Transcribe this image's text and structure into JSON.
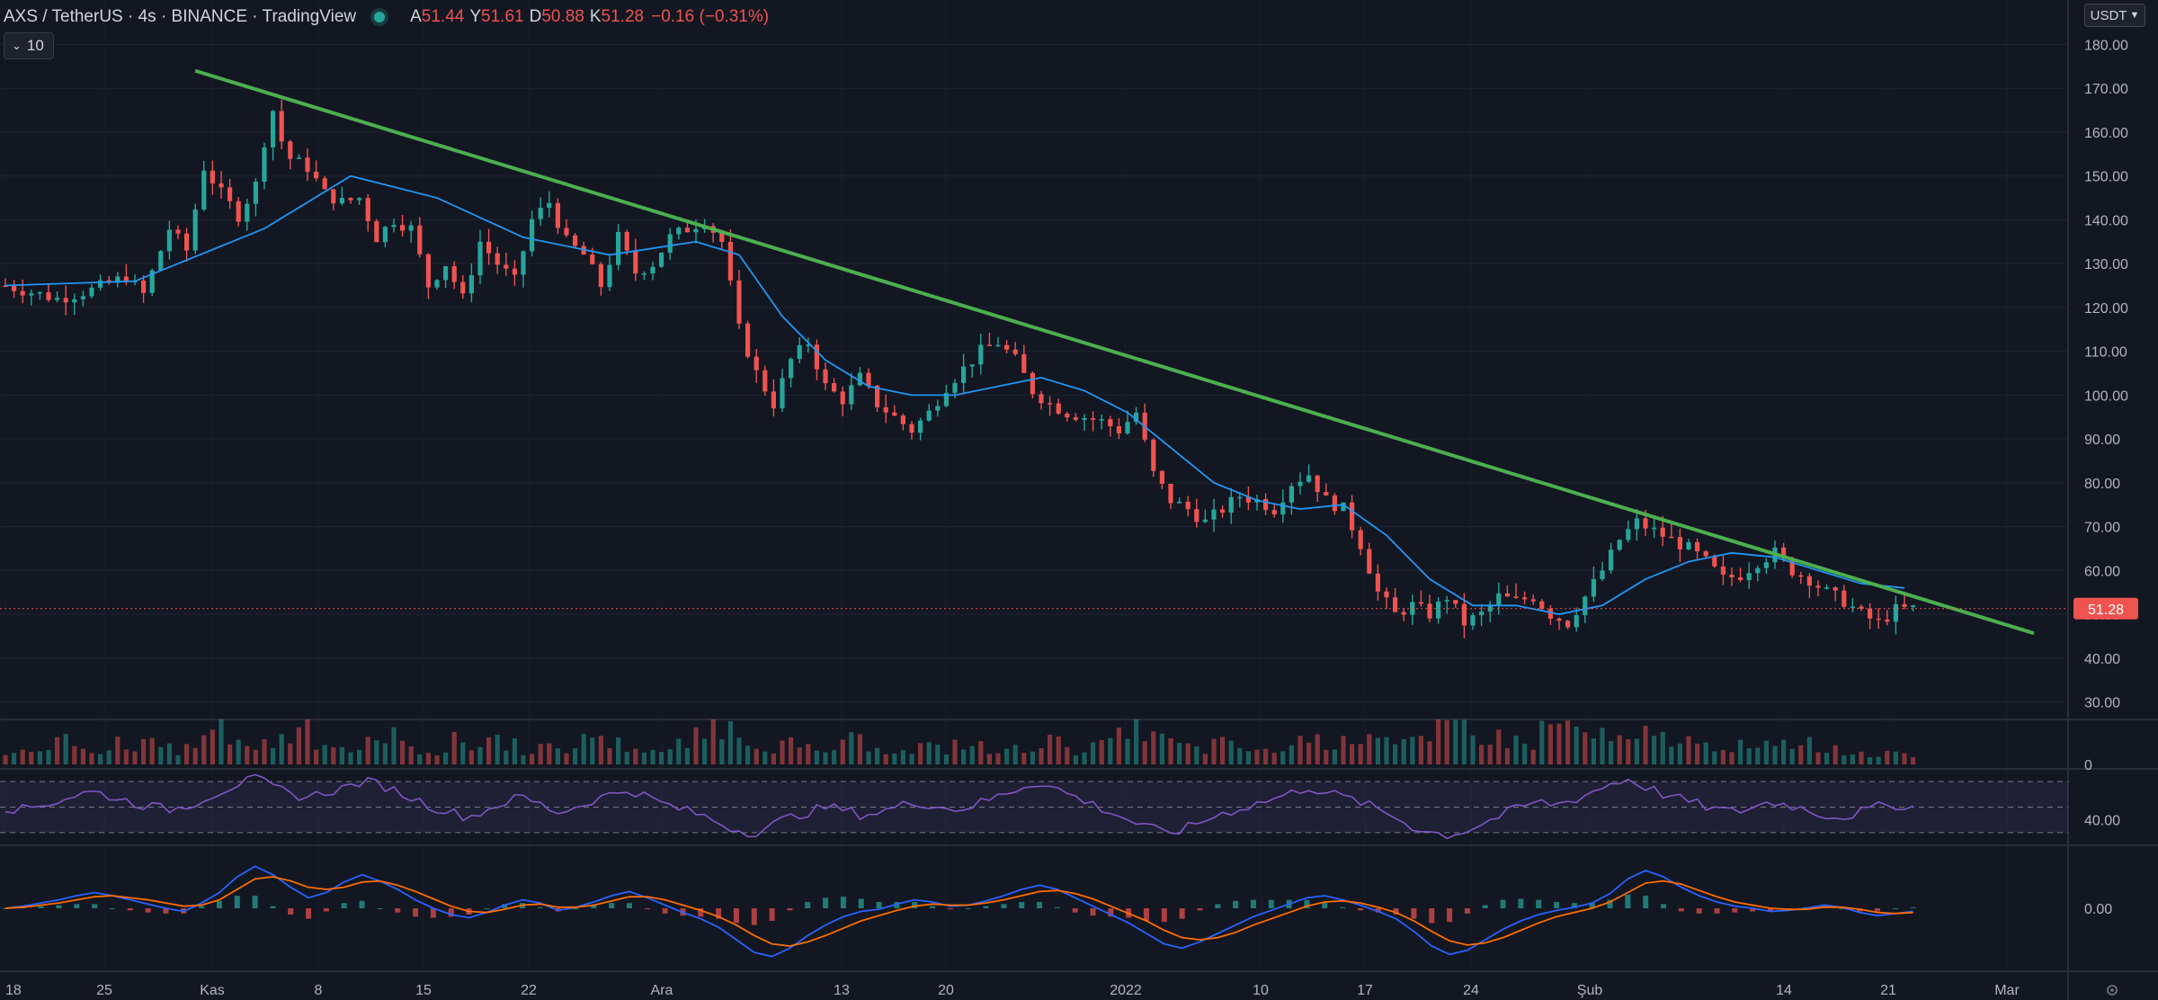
{
  "legend": {
    "symbol": "AXS / TetherUS · 4s · BINANCE · TradingView",
    "open_label": "A",
    "open": "51.44",
    "high_label": "Y",
    "high": "51.61",
    "low_label": "D",
    "low": "50.88",
    "close_label": "K",
    "close": "51.28",
    "change": "−0.16 (−0.31%)"
  },
  "interval_button": {
    "label": "10"
  },
  "currency_selector": {
    "label": "USDT"
  },
  "colors": {
    "background": "#131722",
    "up": "#26a69a",
    "down": "#ef5350",
    "ma": "#2196f3",
    "trendline": "#4caf50",
    "rsi": "#7e57c2",
    "macd": "#2962ff",
    "signal": "#ff6d00"
  },
  "chart_data": [
    {
      "type": "candlestick",
      "pane": "price",
      "y_axis_ticks": [
        "180.00",
        "170.00",
        "160.00",
        "150.00",
        "140.00",
        "130.00",
        "120.00",
        "110.00",
        "100.00",
        "90.00",
        "80.00",
        "70.00",
        "60.00",
        "50.00",
        "40.00",
        "30.00"
      ],
      "ylim": [
        26,
        184
      ],
      "x_axis_ticks": [
        "18",
        "25",
        "Kas",
        "8",
        "15",
        "22",
        "Ara",
        "13",
        "20",
        "2022",
        "10",
        "17",
        "24",
        "Şub",
        "14",
        "21",
        "Mar"
      ],
      "current_price_label": "51.28",
      "price_path": [
        [
          0,
          125
        ],
        [
          6,
          122
        ],
        [
          10,
          124
        ],
        [
          14,
          127
        ],
        [
          16,
          123
        ],
        [
          19,
          138
        ],
        [
          21,
          133
        ],
        [
          23,
          152
        ],
        [
          25,
          146
        ],
        [
          27,
          141
        ],
        [
          29,
          148
        ],
        [
          30,
          158
        ],
        [
          31,
          165
        ],
        [
          32,
          158
        ],
        [
          33,
          154
        ],
        [
          35,
          152
        ],
        [
          37,
          146
        ],
        [
          39,
          144
        ],
        [
          41,
          145
        ],
        [
          43,
          136
        ],
        [
          45,
          140
        ],
        [
          47,
          138
        ],
        [
          49,
          125
        ],
        [
          51,
          130
        ],
        [
          53,
          122
        ],
        [
          55,
          135
        ],
        [
          57,
          130
        ],
        [
          59,
          126
        ],
        [
          61,
          140
        ],
        [
          63,
          144
        ],
        [
          65,
          135
        ],
        [
          67,
          132
        ],
        [
          69,
          125
        ],
        [
          71,
          136
        ],
        [
          73,
          128
        ],
        [
          75,
          130
        ],
        [
          77,
          136
        ],
        [
          79,
          138
        ],
        [
          81,
          140
        ],
        [
          83,
          135
        ],
        [
          85,
          115
        ],
        [
          87,
          105
        ],
        [
          89,
          98
        ],
        [
          91,
          108
        ],
        [
          93,
          112
        ],
        [
          95,
          102
        ],
        [
          97,
          99
        ],
        [
          99,
          104
        ],
        [
          101,
          98
        ],
        [
          103,
          95
        ],
        [
          105,
          92
        ],
        [
          107,
          96
        ],
        [
          109,
          102
        ],
        [
          111,
          106
        ],
        [
          113,
          110
        ],
        [
          115,
          112
        ],
        [
          117,
          108
        ],
        [
          119,
          101
        ],
        [
          121,
          98
        ],
        [
          123,
          96
        ],
        [
          125,
          95
        ],
        [
          127,
          94
        ],
        [
          129,
          92
        ],
        [
          131,
          96
        ],
        [
          133,
          82
        ],
        [
          135,
          76
        ],
        [
          137,
          74
        ],
        [
          139,
          71
        ],
        [
          141,
          74
        ],
        [
          143,
          77
        ],
        [
          145,
          76
        ],
        [
          147,
          74
        ],
        [
          149,
          80
        ],
        [
          151,
          82
        ],
        [
          153,
          76
        ],
        [
          155,
          74
        ],
        [
          157,
          66
        ],
        [
          159,
          55
        ],
        [
          161,
          50
        ],
        [
          163,
          52
        ],
        [
          165,
          50
        ],
        [
          167,
          54
        ],
        [
          169,
          48
        ],
        [
          171,
          50
        ],
        [
          173,
          54
        ],
        [
          175,
          53
        ],
        [
          177,
          54
        ],
        [
          179,
          50
        ],
        [
          181,
          48
        ],
        [
          183,
          54
        ],
        [
          185,
          60
        ],
        [
          187,
          67
        ],
        [
          189,
          71
        ],
        [
          191,
          69
        ],
        [
          193,
          67
        ],
        [
          195,
          65
        ],
        [
          197,
          62
        ],
        [
          199,
          58
        ],
        [
          201,
          59
        ],
        [
          203,
          62
        ],
        [
          205,
          64
        ],
        [
          207,
          60
        ],
        [
          209,
          58
        ],
        [
          211,
          55
        ],
        [
          213,
          53
        ],
        [
          215,
          50
        ],
        [
          217,
          48
        ],
        [
          219,
          51
        ],
        [
          221,
          51.28
        ]
      ],
      "series": [
        {
          "name": "MA",
          "values": [
            [
              0,
              125
            ],
            [
              15,
              126
            ],
            [
              30,
              138
            ],
            [
              40,
              150
            ],
            [
              50,
              145
            ],
            [
              60,
              136
            ],
            [
              70,
              132
            ],
            [
              80,
              135
            ],
            [
              85,
              132
            ],
            [
              90,
              118
            ],
            [
              95,
              108
            ],
            [
              100,
              102
            ],
            [
              105,
              100
            ],
            [
              110,
              100
            ],
            [
              115,
              102
            ],
            [
              120,
              104
            ],
            [
              125,
              101
            ],
            [
              130,
              96
            ],
            [
              135,
              88
            ],
            [
              140,
              80
            ],
            [
              145,
              76
            ],
            [
              150,
              74
            ],
            [
              155,
              75
            ],
            [
              160,
              68
            ],
            [
              165,
              58
            ],
            [
              170,
              52
            ],
            [
              175,
              52
            ],
            [
              180,
              50
            ],
            [
              185,
              52
            ],
            [
              190,
              58
            ],
            [
              195,
              62
            ],
            [
              200,
              64
            ],
            [
              205,
              63
            ],
            [
              210,
              60
            ],
            [
              215,
              57
            ],
            [
              220,
              56
            ]
          ]
        },
        {
          "name": "Trendline",
          "values": [
            [
              22,
              174
            ],
            [
              235,
              48
            ]
          ]
        }
      ]
    },
    {
      "type": "bar",
      "pane": "volume",
      "y_axis_ticks": [
        "0"
      ],
      "values": [
        3,
        6,
        4,
        8,
        5,
        3,
        7,
        4,
        9,
        6,
        5,
        8,
        12,
        10,
        6,
        7,
        9,
        14,
        8,
        6,
        5,
        7,
        11,
        6,
        5,
        4,
        8,
        6,
        9,
        7,
        5,
        6,
        4,
        8,
        10,
        7,
        6,
        5,
        4,
        7,
        9,
        14,
        12,
        8,
        6,
        7,
        5,
        4,
        6,
        8,
        7,
        5,
        4,
        6,
        5,
        7,
        6,
        4,
        5,
        6,
        8,
        7,
        5,
        6,
        9,
        14,
        11,
        8,
        6,
        5,
        7,
        6,
        5,
        4,
        6,
        9,
        8,
        7,
        10,
        12,
        9,
        8,
        7,
        11,
        13,
        10,
        9,
        8,
        7,
        12,
        14,
        11,
        9,
        8,
        7,
        10,
        9,
        8,
        6,
        7,
        6,
        5,
        6,
        7,
        8,
        6,
        5,
        4
      ]
    },
    {
      "type": "line",
      "pane": "rsi",
      "name": "RSI",
      "y_axis_ticks": [
        "40.00"
      ],
      "ylim": [
        20,
        80
      ],
      "bands": [
        70,
        50,
        30
      ],
      "values": [
        50,
        48,
        52,
        55,
        60,
        62,
        58,
        54,
        51,
        48,
        50,
        56,
        62,
        68,
        72,
        66,
        60,
        58,
        62,
        65,
        70,
        68,
        62,
        56,
        50,
        46,
        42,
        48,
        54,
        58,
        52,
        46,
        50,
        56,
        60,
        64,
        58,
        52,
        48,
        44,
        38,
        32,
        30,
        36,
        42,
        46,
        50,
        48,
        44,
        46,
        50,
        54,
        52,
        48,
        50,
        55,
        60,
        66,
        70,
        64,
        58,
        52,
        46,
        40,
        34,
        30,
        32,
        38,
        44,
        48,
        52,
        56,
        60,
        66,
        62,
        58,
        54,
        48,
        42,
        34,
        30,
        28,
        32,
        38,
        44,
        50,
        54,
        52,
        56,
        62,
        68,
        72,
        66,
        60,
        56,
        52,
        48,
        46,
        50,
        54,
        52,
        48,
        44,
        42,
        46,
        50,
        52,
        50
      ]
    },
    {
      "type": "line",
      "pane": "macd",
      "name": "MACD",
      "y_axis_ticks": [
        "0.00"
      ],
      "ylim": [
        -6,
        6
      ],
      "values": [
        0,
        0.2,
        0.5,
        0.8,
        1.2,
        1.5,
        1.2,
        0.8,
        0.4,
        0,
        -0.3,
        0.5,
        1.5,
        3,
        4,
        3.2,
        2,
        1,
        1.5,
        2.5,
        3.2,
        2.6,
        1.8,
        0.8,
        0,
        -0.6,
        -0.9,
        -0.4,
        0.3,
        0.8,
        0.5,
        -0.2,
        0.1,
        0.6,
        1.2,
        1.6,
        1,
        0.3,
        -0.4,
        -1,
        -1.8,
        -3,
        -4.2,
        -4.6,
        -3.8,
        -2.6,
        -1.6,
        -0.8,
        -0.3,
        -0.1,
        0.4,
        0.8,
        0.6,
        0.2,
        0.3,
        0.7,
        1.2,
        1.8,
        2.2,
        1.8,
        1,
        0.2,
        -0.6,
        -1.4,
        -2.4,
        -3.4,
        -3.8,
        -3.2,
        -2.4,
        -1.6,
        -0.8,
        -0.2,
        0.4,
        1,
        1.2,
        0.8,
        0.3,
        -0.3,
        -1,
        -2.2,
        -3.6,
        -4.4,
        -4,
        -3,
        -2,
        -1.2,
        -0.6,
        -0.2,
        0.1,
        0.5,
        1.4,
        2.8,
        3.6,
        3,
        2,
        1.2,
        0.6,
        0.2,
        0,
        -0.3,
        -0.2,
        0,
        0.3,
        0.1,
        -0.4,
        -0.7,
        -0.5,
        -0.3
      ]
    },
    {
      "type": "line",
      "pane": "macd",
      "name": "Signal",
      "values": [
        0,
        0.1,
        0.3,
        0.5,
        0.8,
        1.1,
        1.2,
        1,
        0.8,
        0.5,
        0.2,
        0.3,
        0.8,
        1.8,
        2.8,
        3,
        2.6,
        2,
        1.8,
        2,
        2.5,
        2.6,
        2.2,
        1.6,
        0.9,
        0.2,
        -0.3,
        -0.4,
        -0.1,
        0.3,
        0.4,
        0.1,
        0.1,
        0.3,
        0.7,
        1.1,
        1.1,
        0.8,
        0.3,
        -0.2,
        -0.8,
        -1.6,
        -2.6,
        -3.4,
        -3.6,
        -3.2,
        -2.6,
        -1.9,
        -1.2,
        -0.7,
        -0.2,
        0.2,
        0.4,
        0.3,
        0.3,
        0.5,
        0.8,
        1.2,
        1.6,
        1.7,
        1.4,
        0.9,
        0.2,
        -0.5,
        -1.2,
        -2.1,
        -2.8,
        -3,
        -2.8,
        -2.3,
        -1.6,
        -1,
        -0.4,
        0.2,
        0.6,
        0.7,
        0.5,
        0.1,
        -0.4,
        -1.2,
        -2.2,
        -3.1,
        -3.5,
        -3.3,
        -2.8,
        -2.1,
        -1.4,
        -0.8,
        -0.4,
        0,
        0.6,
        1.5,
        2.4,
        2.6,
        2.3,
        1.7,
        1.1,
        0.6,
        0.3,
        0,
        -0.1,
        -0.1,
        0.1,
        0.1,
        -0.1,
        -0.4,
        -0.5,
        -0.4
      ]
    }
  ]
}
